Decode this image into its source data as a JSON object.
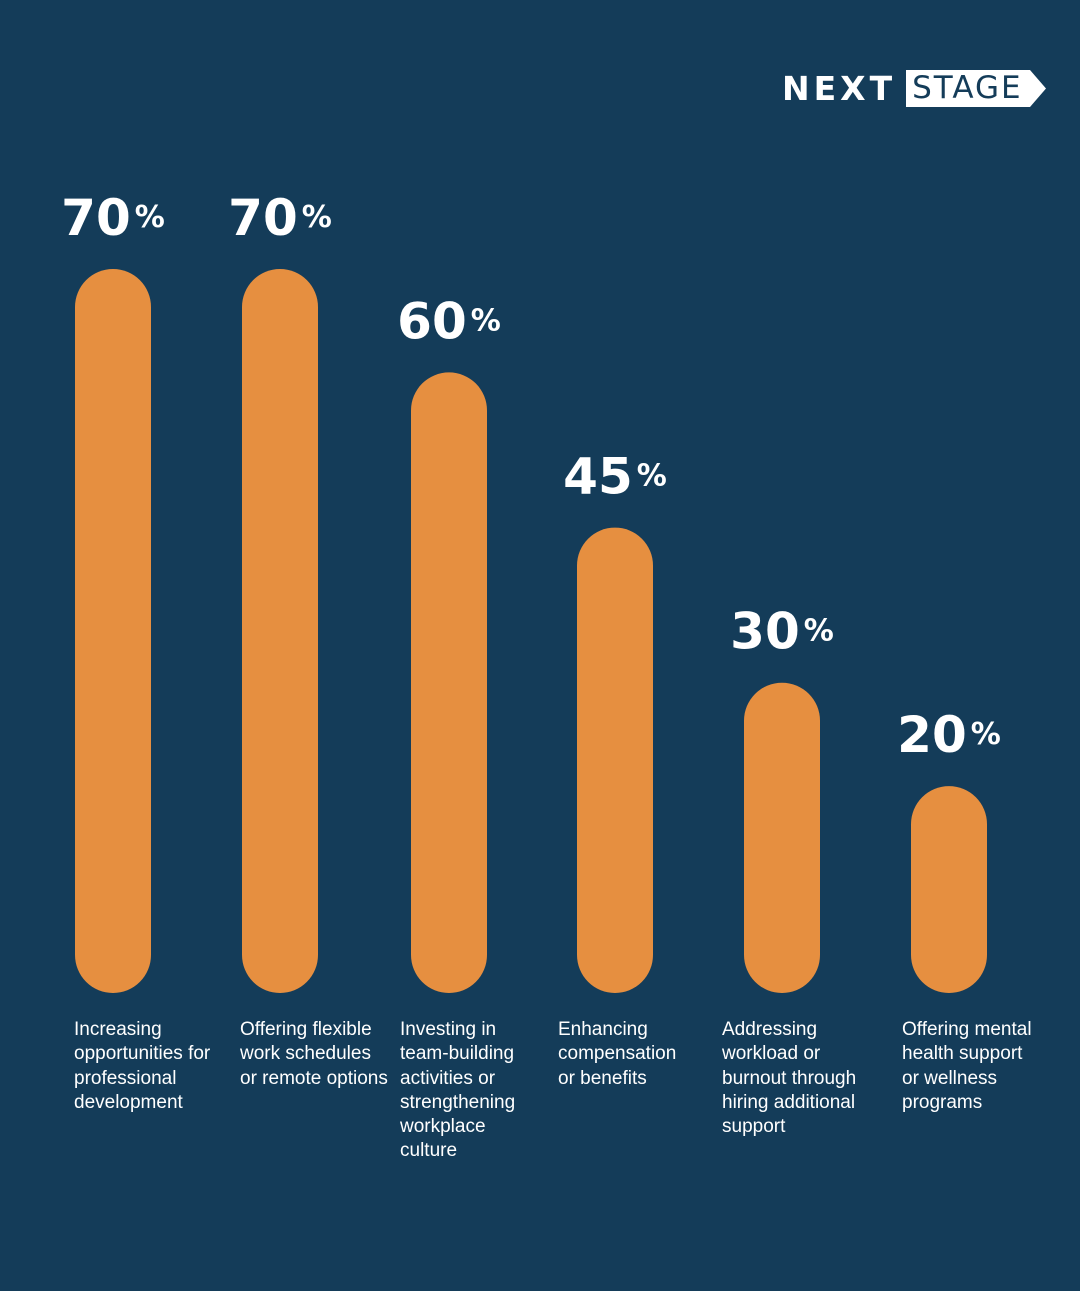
{
  "brand": {
    "logo_next": "NEXT",
    "logo_stage": "STAGE"
  },
  "colors": {
    "background": "#143c59",
    "bar": "#e68f40",
    "text": "#ffffff"
  },
  "chart_data": {
    "type": "bar",
    "categories": [
      "Increasing opportunities for professional development",
      "Offering flexible work schedules or remote options",
      "Investing in team-building activities or strengthening workplace culture",
      "Enhancing compensation or benefits",
      "Addressing workload or burnout through hiring additional support",
      "Offering mental health support or wellness programs"
    ],
    "values": [
      70,
      70,
      60,
      45,
      30,
      20
    ],
    "value_labels": [
      "70",
      "70",
      "60",
      "45",
      "30",
      "20"
    ],
    "unit": "%",
    "ylim": [
      0,
      70
    ],
    "grid": false,
    "legend": "none"
  }
}
